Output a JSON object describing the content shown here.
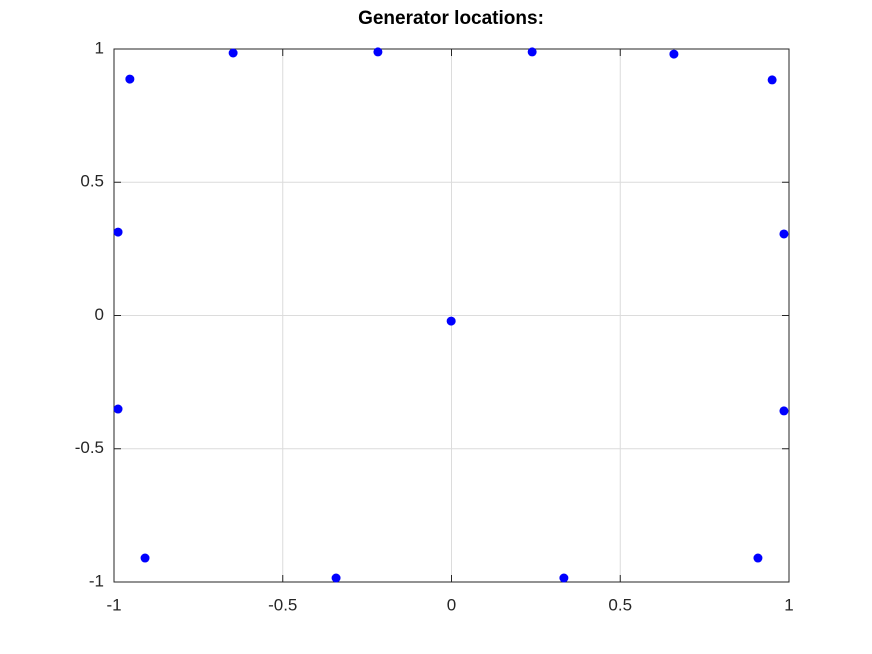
{
  "chart_data": {
    "type": "scatter",
    "title": "Generator locations:",
    "series": [
      {
        "color": "#0000ff",
        "x": [
          -0.953,
          -0.647,
          -0.218,
          0.239,
          0.659,
          0.95,
          -0.988,
          0.985,
          -0.001,
          -0.988,
          0.985,
          -0.908,
          -0.342,
          0.333,
          0.908
        ],
        "values": [
          0.887,
          0.985,
          0.989,
          0.989,
          0.981,
          0.884,
          0.313,
          0.306,
          -0.021,
          -0.351,
          -0.358,
          -0.91,
          -0.985,
          -0.985,
          -0.91
        ]
      }
    ],
    "xlim": [
      -1,
      1
    ],
    "ylim": [
      -1,
      1
    ],
    "xticks": [
      -1,
      -0.5,
      0,
      0.5,
      1
    ],
    "yticks": [
      -1,
      -0.5,
      0,
      0.5,
      1
    ],
    "grid": true
  }
}
